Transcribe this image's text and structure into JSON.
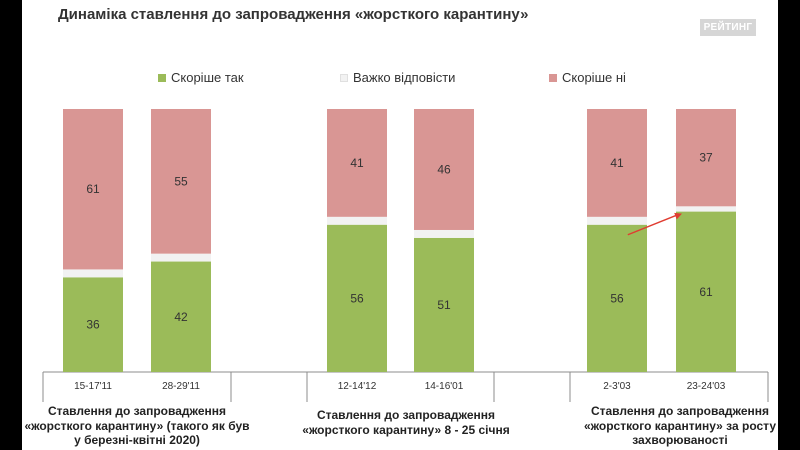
{
  "title": "Динаміка ставлення до запровадження «жорсткого карантину»",
  "logo": "РЕЙТИНГ",
  "legend": [
    {
      "label": "Скоріше так",
      "color": "#9bbb59"
    },
    {
      "label": "Важко відповісти",
      "color": "#f2f2f2"
    },
    {
      "label": "Скоріше ні",
      "color": "#d99694"
    }
  ],
  "group_labels": [
    [
      "Ставлення до запровадження",
      "«жорсткого карантину» (такого як був",
      "у березні-квітні 2020)"
    ],
    [
      "Ставлення до запровадження",
      "«жорсткого карантину» 8 - 25 січня"
    ],
    [
      "Ставлення до запровадження",
      "«жорсткого карантину» за росту",
      "захворюваності"
    ]
  ],
  "chart_data": {
    "type": "bar",
    "stacked": true,
    "categories": [
      "15-17'11",
      "28-29'11",
      "12-14'12",
      "14-16'01",
      "2-3'03",
      "23-24'03"
    ],
    "series": [
      {
        "name": "Скоріше так",
        "values": [
          36,
          42,
          56,
          51,
          56,
          61
        ],
        "color": "#9bbb59"
      },
      {
        "name": "Важко відповісти",
        "values": [
          3,
          3,
          3,
          3,
          3,
          2
        ],
        "color": "#f2f2f2"
      },
      {
        "name": "Скоріше ні",
        "values": [
          61,
          55,
          41,
          46,
          41,
          37
        ],
        "color": "#d99694"
      }
    ],
    "labeled_series": [
      "Скоріше так",
      "Скоріше ні"
    ],
    "ylim": [
      0,
      100
    ],
    "grid": false,
    "legend_position": "top",
    "annotation": {
      "type": "arrow",
      "from_category": "2-3'03",
      "to_category": "23-24'03",
      "series": "Скоріше так",
      "color": "#e03c31"
    }
  }
}
